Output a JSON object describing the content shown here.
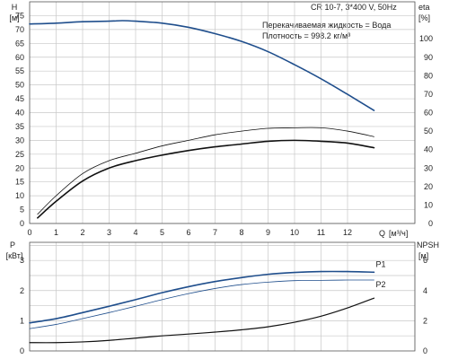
{
  "colors": {
    "blue_curve": "#1f4e8c",
    "dark_curve": "#111111",
    "grid": "#c8c8c8",
    "frame": "#555555",
    "text": "#222222"
  },
  "chart_data": [
    {
      "type": "line",
      "title": "CR 10-7, 3*400 V, 50Hz",
      "info_lines": [
        "Перекачиваемая жидкость = Вода",
        "Плотность = 998.2 кг/м³"
      ],
      "xlabel_line1": "Q",
      "xlabel_unit": "[м³/ч]",
      "ylabel_left": [
        "H",
        "[м]"
      ],
      "ylabel_right": [
        "eta",
        "[%]"
      ],
      "xlim": [
        0,
        14
      ],
      "xticks": [
        "0",
        "1",
        "2",
        "3",
        "4",
        "5",
        "6",
        "7",
        "8",
        "9",
        "10",
        "11",
        "12"
      ],
      "ylim_left": [
        0,
        80
      ],
      "yticks_left": [
        "0",
        "5",
        "10",
        "15",
        "20",
        "25",
        "30",
        "35",
        "40",
        "45",
        "50",
        "55",
        "60",
        "65",
        "70",
        "75"
      ],
      "ylim_right": [
        0,
        120
      ],
      "yticks_right": [
        "0",
        "10",
        "20",
        "30",
        "40",
        "50",
        "60",
        "70",
        "80",
        "90",
        "100"
      ],
      "grid": true,
      "series": [
        {
          "axis": "left",
          "color": "#1f4e8c",
          "width": 1.6,
          "x": [
            0,
            1,
            2,
            3,
            3.5,
            4,
            5,
            6,
            7,
            8,
            9,
            10,
            11,
            12,
            13
          ],
          "y": [
            72.0,
            72.3,
            72.8,
            73.0,
            73.2,
            73.0,
            72.3,
            70.8,
            68.5,
            65.7,
            62.0,
            57.3,
            52.2,
            46.6,
            40.8
          ]
        },
        {
          "axis": "right",
          "color": "#111111",
          "width": 0.8,
          "x": [
            0.3,
            1,
            2,
            3,
            4,
            5,
            6,
            7,
            8,
            9,
            10,
            11,
            12,
            13
          ],
          "y": [
            5,
            15,
            27,
            34,
            38,
            42,
            45,
            48,
            50,
            51.5,
            51.8,
            51.8,
            50,
            47
          ]
        },
        {
          "axis": "right",
          "color": "#111111",
          "width": 1.6,
          "x": [
            0.3,
            1,
            2,
            3,
            4,
            5,
            6,
            7,
            8,
            9,
            10,
            11,
            12,
            13
          ],
          "y": [
            3,
            12,
            23,
            30,
            34,
            37,
            39.5,
            41.5,
            43,
            44.5,
            45,
            44.5,
            43.5,
            41
          ]
        }
      ]
    },
    {
      "type": "line",
      "xlim": [
        0,
        14
      ],
      "ylabel_left": [
        "P",
        "[кВт]"
      ],
      "ylabel_right": [
        "NPSH",
        "[м]"
      ],
      "ylim_left": [
        0,
        3.6
      ],
      "yticks_left": [
        "0",
        "1",
        "2",
        "3"
      ],
      "ylim_right": [
        0,
        7.2
      ],
      "yticks_right": [
        "0",
        "2",
        "4",
        "6"
      ],
      "grid": true,
      "series": [
        {
          "name": "P1",
          "axis": "left",
          "color": "#1f4e8c",
          "width": 1.6,
          "x": [
            0,
            1,
            2,
            3,
            4,
            5,
            6,
            7,
            8,
            9,
            10,
            11,
            12,
            13
          ],
          "y": [
            0.93,
            1.07,
            1.27,
            1.48,
            1.7,
            1.93,
            2.13,
            2.3,
            2.43,
            2.54,
            2.6,
            2.63,
            2.63,
            2.61
          ]
        },
        {
          "name": "P2",
          "axis": "left",
          "color": "#1f4e8c",
          "width": 0.8,
          "x": [
            0,
            1,
            2,
            3,
            4,
            5,
            6,
            7,
            8,
            9,
            10,
            11,
            12,
            13
          ],
          "y": [
            0.74,
            0.88,
            1.07,
            1.27,
            1.48,
            1.7,
            1.9,
            2.07,
            2.2,
            2.28,
            2.33,
            2.34,
            2.35,
            2.35
          ]
        },
        {
          "name": "NPSH",
          "axis": "right",
          "color": "#111111",
          "width": 1.2,
          "x": [
            0,
            1,
            2,
            3,
            4,
            5,
            6,
            7,
            8,
            9,
            10,
            11,
            12,
            13
          ],
          "y": [
            0.55,
            0.55,
            0.6,
            0.7,
            0.85,
            1.0,
            1.12,
            1.25,
            1.4,
            1.6,
            1.9,
            2.3,
            2.85,
            3.5
          ]
        }
      ]
    }
  ]
}
